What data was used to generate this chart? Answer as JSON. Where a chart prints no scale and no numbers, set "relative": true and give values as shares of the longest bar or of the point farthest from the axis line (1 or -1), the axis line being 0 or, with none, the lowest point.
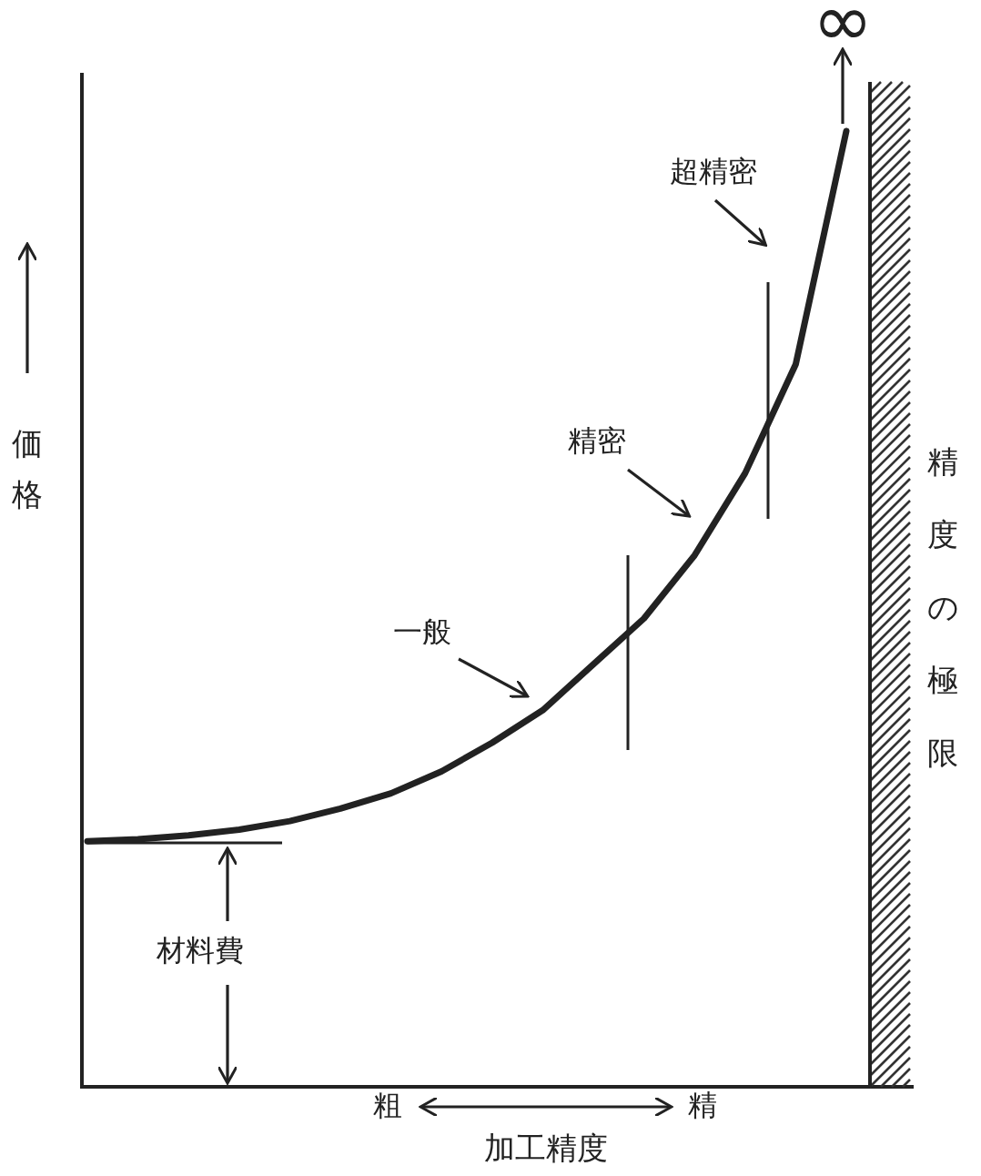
{
  "chart_data": {
    "type": "line",
    "relative": true,
    "color": "#222222",
    "xlabel": "加工精度",
    "ylabel": "価格",
    "categories": [
      null,
      null,
      null,
      null,
      null,
      null,
      null,
      null,
      null,
      null,
      null,
      null,
      null,
      null,
      null,
      null
    ],
    "values": [
      0.257,
      0.259,
      0.263,
      0.269,
      0.278,
      0.291,
      0.307,
      0.33,
      0.36,
      0.394,
      0.442,
      0.49,
      0.556,
      0.642,
      0.756,
      1
    ],
    "annotations": [
      "∞",
      "超精密",
      "精密",
      "一般",
      "精度の極限",
      "材料費",
      "粗",
      "精"
    ]
  }
}
